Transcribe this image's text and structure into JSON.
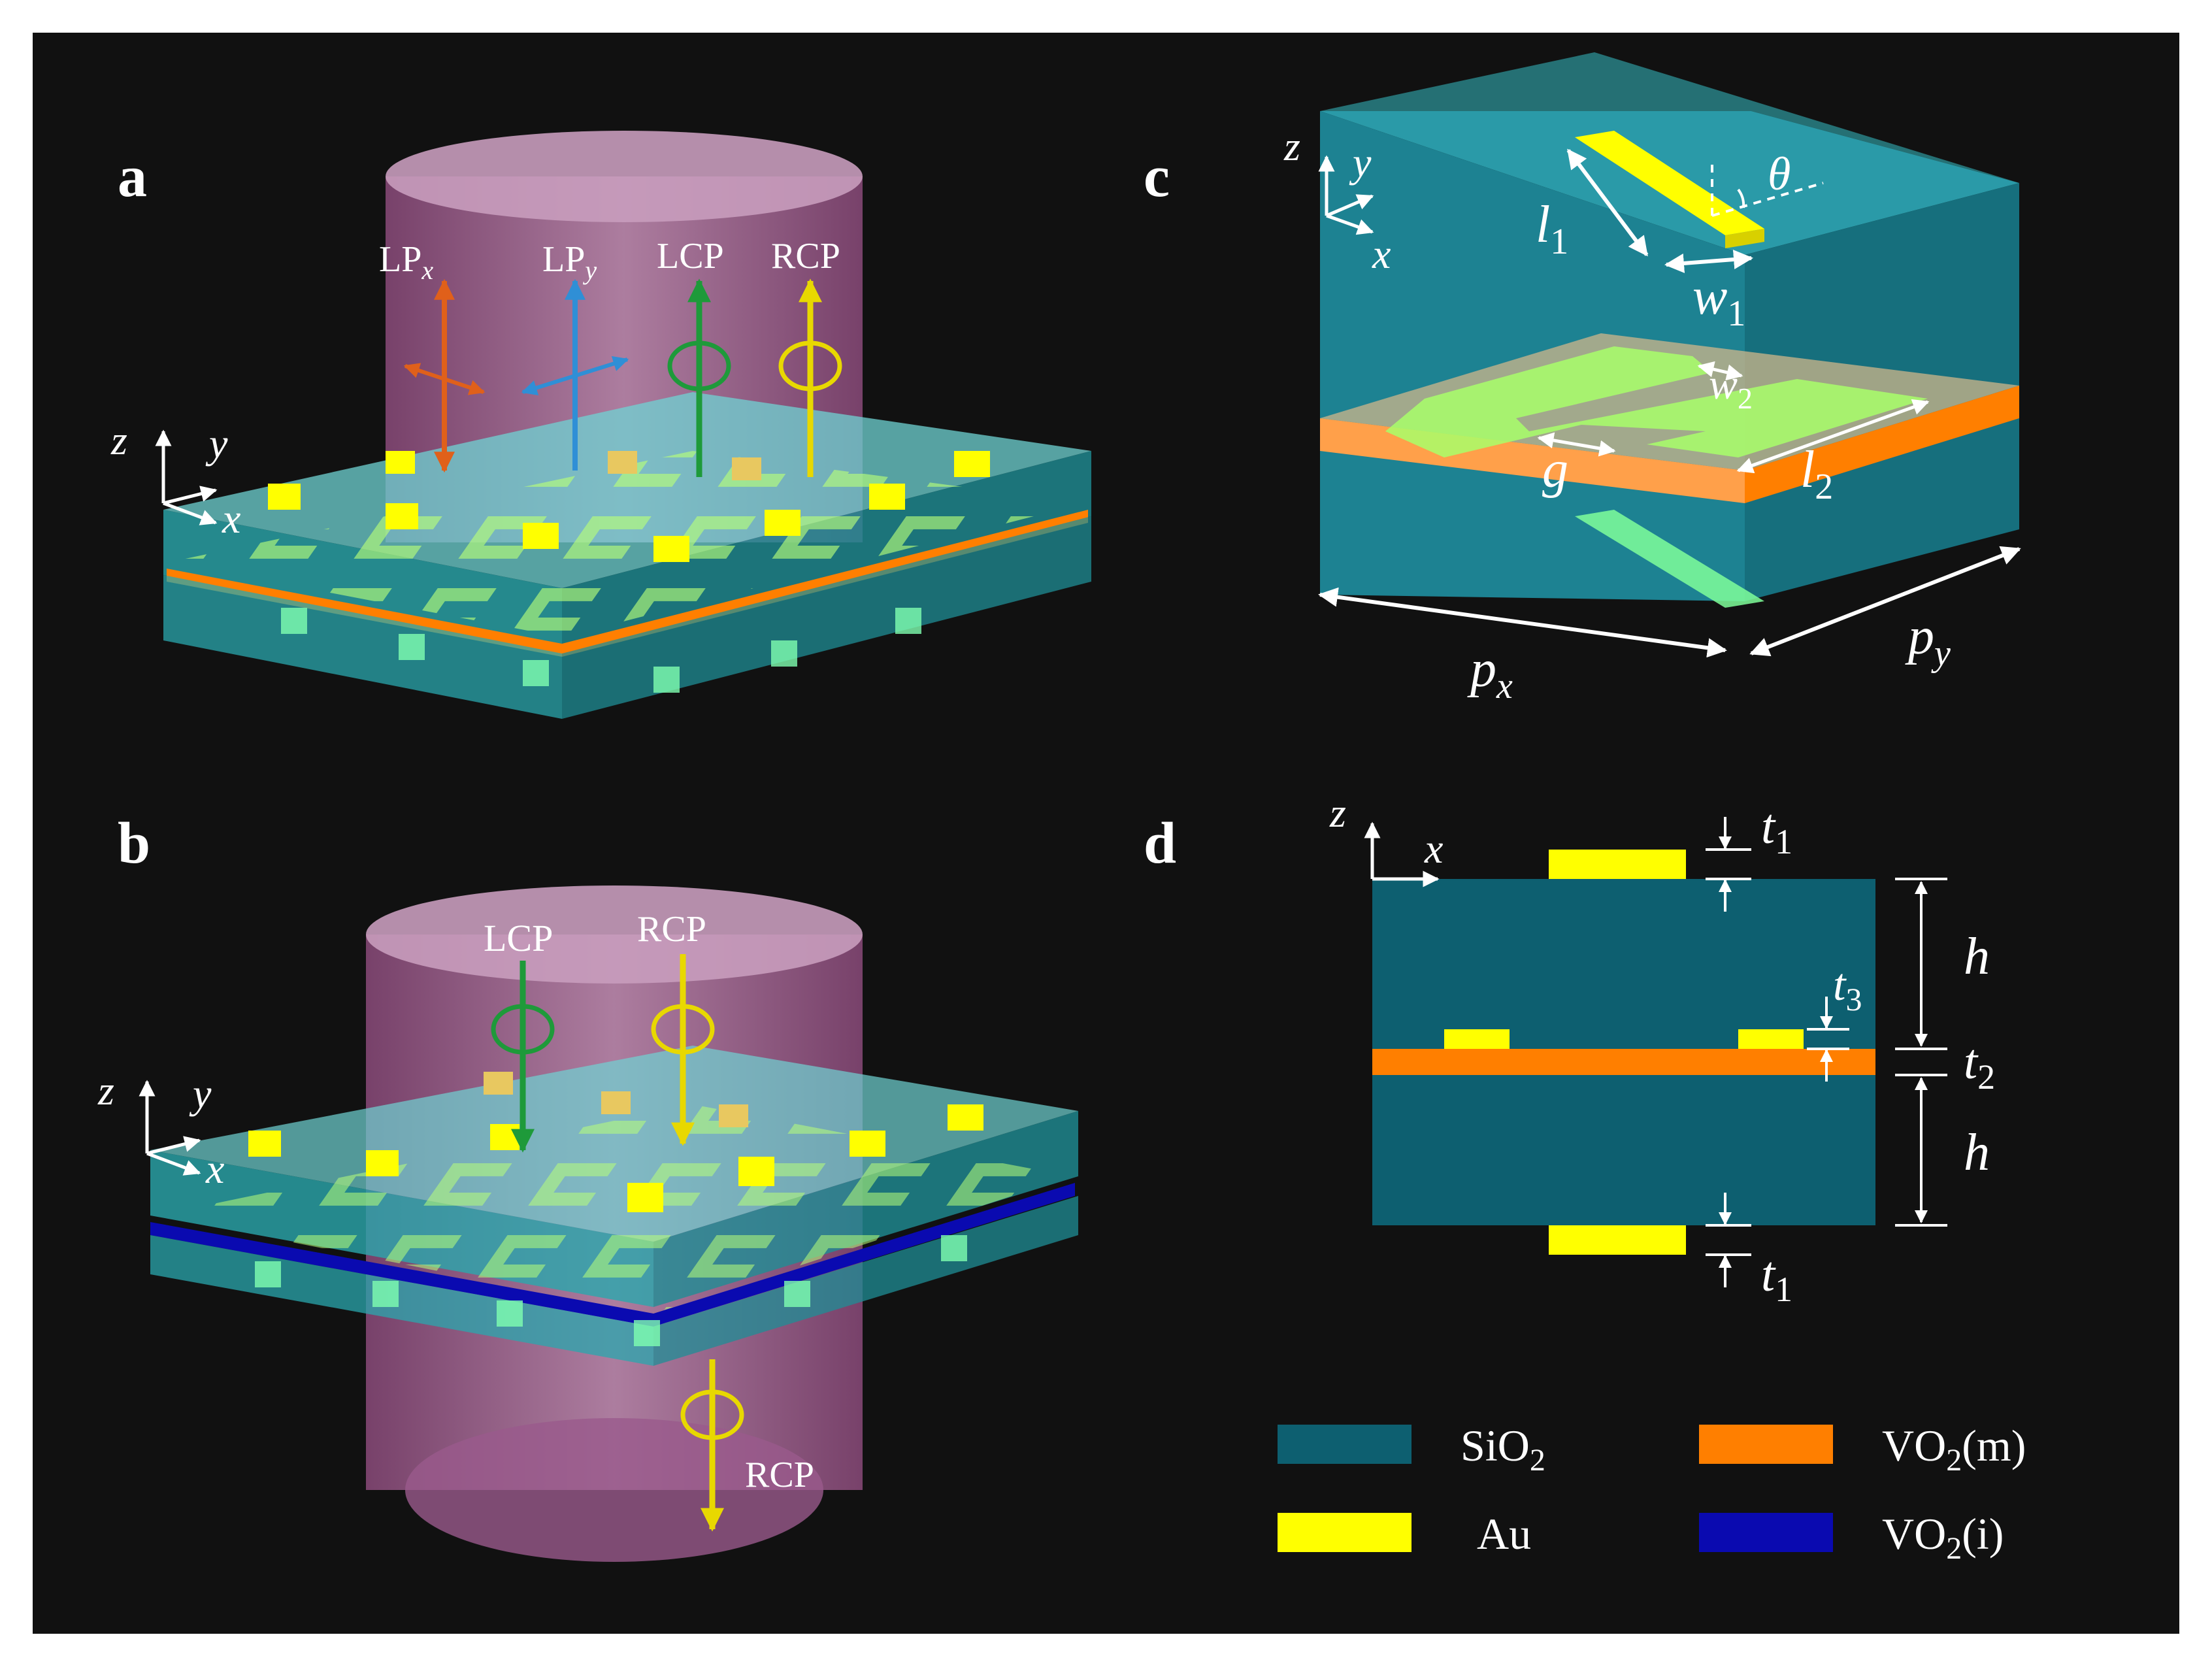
{
  "colors": {
    "background": "#111111",
    "sio2": "#0d5f70",
    "sio2_glass": "#6fd3d3",
    "au": "#ffff00",
    "vo2_metal": "#ff7f00",
    "vo2_insulator": "#0a0ab0",
    "split_ring": "#a8ff6a",
    "beam": "#c07fb0",
    "lpx": "#e0601a",
    "lpy": "#2f8fd6",
    "lcp": "#1e9a3a",
    "rcp": "#e8d800",
    "label": "#ffffff"
  },
  "panels": {
    "a": {
      "label": "a",
      "axes": {
        "z": "z",
        "y": "y",
        "x": "x"
      },
      "beams": [
        {
          "name": "LP",
          "sub": "x",
          "color": "lpx"
        },
        {
          "name": "LP",
          "sub": "y",
          "color": "lpy"
        },
        {
          "name": "LCP",
          "sub": "",
          "color": "lcp"
        },
        {
          "name": "RCP",
          "sub": "",
          "color": "rcp"
        }
      ]
    },
    "b": {
      "label": "b",
      "axes": {
        "z": "z",
        "y": "y",
        "x": "x"
      },
      "incident": [
        "LCP",
        "RCP"
      ],
      "transmitted": "RCP"
    },
    "c": {
      "label": "c",
      "axes": {
        "z": "z",
        "y": "y",
        "x": "x"
      },
      "dims": {
        "l1": {
          "sym": "l",
          "sub": "1"
        },
        "w1": {
          "sym": "w",
          "sub": "1"
        },
        "theta": "θ",
        "w2": {
          "sym": "w",
          "sub": "2"
        },
        "g": "g",
        "l2": {
          "sym": "l",
          "sub": "2"
        },
        "px": {
          "sym": "p",
          "sub": "x"
        },
        "py": {
          "sym": "p",
          "sub": "y"
        }
      }
    },
    "d": {
      "label": "d",
      "axes": {
        "z": "z",
        "x": "x"
      },
      "dims": {
        "t1_top": {
          "sym": "t",
          "sub": "1"
        },
        "t3": {
          "sym": "t",
          "sub": "3"
        },
        "h_top": "h",
        "t2": {
          "sym": "t",
          "sub": "2"
        },
        "h_bottom": "h",
        "t1_bottom": {
          "sym": "t",
          "sub": "1"
        }
      }
    }
  },
  "legend": [
    {
      "text": "SiO",
      "sub": "2",
      "tail": "",
      "color": "sio2"
    },
    {
      "text": "VO",
      "sub": "2",
      "tail": "(m)",
      "color": "vo2_metal"
    },
    {
      "text": "Au",
      "sub": "",
      "tail": "",
      "color": "au"
    },
    {
      "text": "VO",
      "sub": "2",
      "tail": "(i)",
      "color": "vo2_insulator"
    }
  ]
}
